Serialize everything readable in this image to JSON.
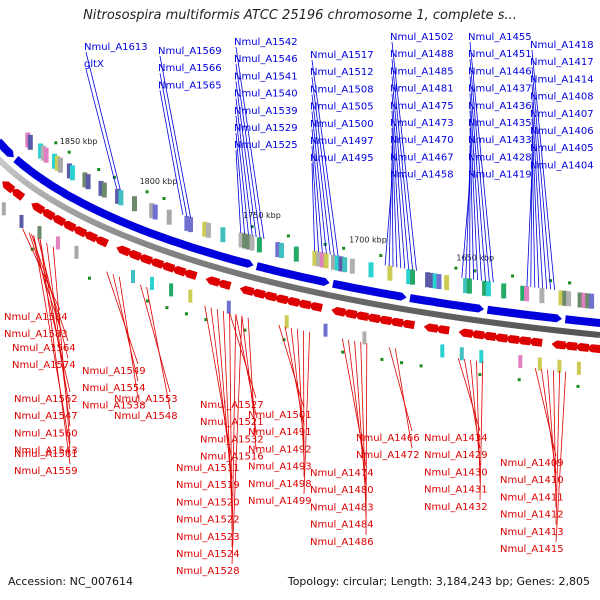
{
  "title": "Nitrosospira multiformis ATCC 25196 chromosome 1, complete s...",
  "scale_ticks": [
    "1850 kbp",
    "1800 kbp",
    "1750 kbp",
    "1700 kbp",
    "1650 kbp"
  ],
  "top_labels": [
    "Nmul_A1613",
    "gltX",
    "Nmul_A1569",
    "Nmul_A1566",
    "Nmul_A1565",
    "Nmul_A1542",
    "Nmul_A1546",
    "Nmul_A1541",
    "Nmul_A1540",
    "Nmul_A1539",
    "Nmul_A1529",
    "Nmul_A1525",
    "Nmul_A1517",
    "Nmul_A1512",
    "Nmul_A1508",
    "Nmul_A1505",
    "Nmul_A1500",
    "Nmul_A1497",
    "Nmul_A1495",
    "Nmul_A1502",
    "Nmul_A1488",
    "Nmul_A1485",
    "Nmul_A1481",
    "Nmul_A1475",
    "Nmul_A1473",
    "Nmul_A1470",
    "Nmul_A1467",
    "Nmul_A1458",
    "Nmul_A1455",
    "Nmul_A1451",
    "Nmul_A1446",
    "Nmul_A1437",
    "Nmul_A1436",
    "Nmul_A1435",
    "Nmul_A1433",
    "Nmul_A1428",
    "Nmul_A1419",
    "Nmul_A1418",
    "Nmul_A1417",
    "Nmul_A1414",
    "Nmul_A1408",
    "Nmul_A1407",
    "Nmul_A1406",
    "Nmul_A1405",
    "Nmul_A1404"
  ],
  "bottom_labels": [
    "Nmul_A1584",
    "Nmul_A1583",
    "Nmul_A1564",
    "Nmul_A1574",
    "Nmul_A1549",
    "Nmul_A1554",
    "Nmul_A1538",
    "Nmul_A1562",
    "Nmul_A1547",
    "Nmul_A1560",
    "Nmul_A1543",
    "Nmul_A1553",
    "Nmul_A1548",
    "Nmul_A1561",
    "Nmul_A1559",
    "Nmul_A1527",
    "Nmul_A1521",
    "Nmul_A1532",
    "Nmul_A1516",
    "Nmul_A1511",
    "Nmul_A1519",
    "Nmul_A1520",
    "Nmul_A1522",
    "Nmul_A1523",
    "Nmul_A1524",
    "Nmul_A1528",
    "Nmul_A1501",
    "Nmul_A1491",
    "Nmul_A1492",
    "Nmul_A1493",
    "Nmul_A1498",
    "Nmul_A1499",
    "Nmul_A1474",
    "Nmul_A1480",
    "Nmul_A1483",
    "Nmul_A1484",
    "Nmul_A1486",
    "Nmul_A1466",
    "Nmul_A1472",
    "Nmul_A1434",
    "Nmul_A1429",
    "Nmul_A1430",
    "Nmul_A1431",
    "Nmul_A1432",
    "Nmul_A1409",
    "Nmul_A1410",
    "Nmul_A1411",
    "Nmul_A1412",
    "Nmul_A1413",
    "Nmul_A1415"
  ],
  "colors": {
    "forward": "#0000dd",
    "reverse": "#dd0000",
    "backbone": "#8a8a8a",
    "marker": "#1a8a1a"
  },
  "footer": {
    "accession": "Accession: NC_007614",
    "summary": "Topology: circular; Length: 3,184,243 bp; Genes: 2,805"
  }
}
